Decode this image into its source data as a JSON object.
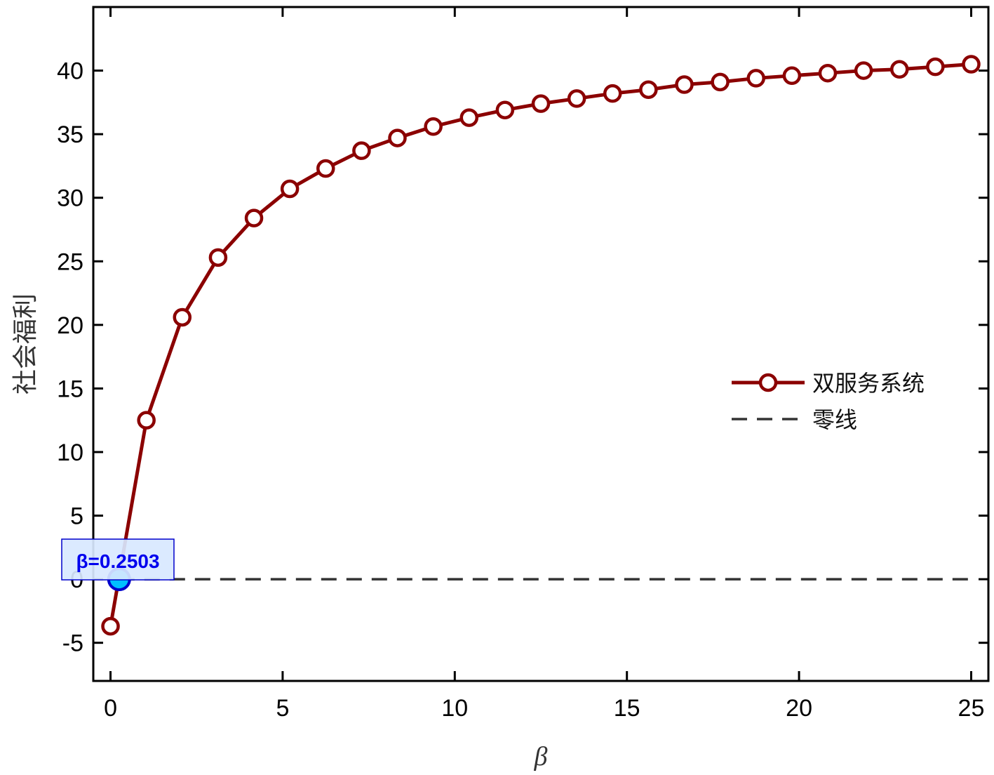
{
  "chart_data": {
    "type": "line",
    "title": "",
    "xlabel": "β",
    "ylabel": "社会福利",
    "xlim": [
      -0.5,
      25.5
    ],
    "ylim": [
      -8,
      45
    ],
    "xticks": [
      0,
      5,
      10,
      15,
      20,
      25
    ],
    "yticks": [
      -5,
      0,
      5,
      10,
      15,
      20,
      25,
      30,
      35,
      40
    ],
    "xtick_labels": [
      "0",
      "5",
      "10",
      "15",
      "20",
      "25"
    ],
    "ytick_labels": [
      "-5",
      "0",
      "5",
      "10",
      "15",
      "20",
      "25",
      "30",
      "35",
      "40"
    ],
    "grid": false,
    "legend_position": "center-right",
    "series": [
      {
        "name": "双服务系统",
        "color": "#8b0000",
        "style": "solid-with-circle-markers",
        "x": [
          0,
          1.042,
          2.083,
          3.125,
          4.167,
          5.208,
          6.25,
          7.292,
          8.333,
          9.375,
          10.417,
          11.458,
          12.5,
          13.542,
          14.583,
          15.625,
          16.667,
          17.708,
          18.75,
          19.792,
          20.833,
          21.875,
          22.917,
          23.958,
          25
        ],
        "y": [
          -3.7,
          12.5,
          20.6,
          25.3,
          28.4,
          30.7,
          32.3,
          33.7,
          34.7,
          35.6,
          36.3,
          36.9,
          37.4,
          37.8,
          38.2,
          38.5,
          38.9,
          39.1,
          39.4,
          39.6,
          39.8,
          40.0,
          40.1,
          40.3,
          40.5
        ]
      },
      {
        "name": "零线",
        "color": "#333333",
        "style": "dashed",
        "x": [
          0.2503,
          25
        ],
        "y": [
          0,
          0
        ]
      }
    ],
    "annotation": {
      "text": "β=0.2503",
      "x": 0.2503,
      "y": 0,
      "marker_color": "#00bfff",
      "box_color": "#d8e8ff"
    }
  }
}
